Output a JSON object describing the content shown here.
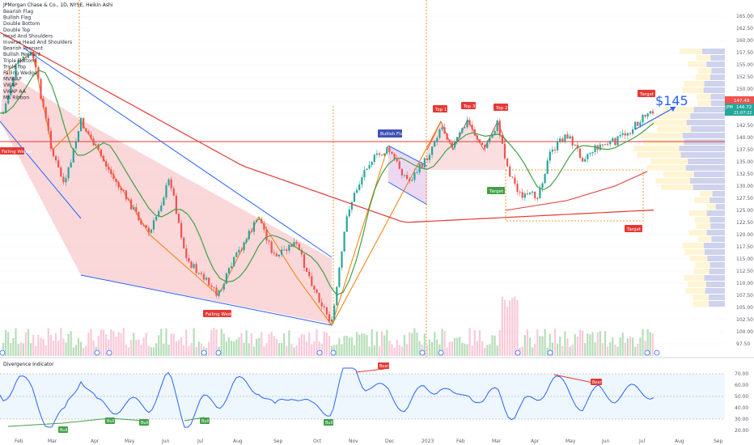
{
  "header": {
    "symbol_line": "JPMorgan Chase & Co., 1D, NYSE, Heikin Ashi"
  },
  "legend": {
    "items": [
      "Bearish Flag",
      "Bullish Flag",
      "Double Bottom",
      "Double Top",
      "Head And Shoulders",
      "Inverse Head And Shoulders",
      "Bearish Pennant",
      "Bullish Pennant",
      "Triple Bottom",
      "Triple Top",
      "Falling Wedge",
      "MVWAP",
      "VWAP",
      "VWAP AA",
      "MA Ribbon"
    ]
  },
  "price_axis": {
    "ticks": [
      "165.00",
      "162.50",
      "160.00",
      "157.50",
      "155.00",
      "152.50",
      "150.00",
      "147.50",
      "145.00",
      "142.50",
      "140.00",
      "137.50",
      "135.00",
      "132.50",
      "130.00",
      "127.50",
      "125.00",
      "122.50",
      "120.00",
      "117.50",
      "115.00",
      "112.50",
      "110.00",
      "107.50",
      "105.00",
      "102.50",
      "100.00",
      "97.50"
    ],
    "badges": {
      "price1": "147.49",
      "price2": "146.72",
      "symbol": "JPM",
      "countdown": "21:07:22"
    }
  },
  "time_axis": {
    "labels": [
      "Feb",
      "Mar",
      "Apr",
      "May",
      "Jun",
      "Jul",
      "Aug",
      "Sep",
      "Oct",
      "Nov",
      "Dec",
      "2023",
      "Feb",
      "Mar",
      "Apr",
      "May",
      "Jun",
      "Jul",
      "Aug",
      "Sep"
    ]
  },
  "annotations": {
    "big_price": "$145",
    "falling_wedge_left": "Falling Wedge",
    "falling_wedge_bottom": "Falling Wedge",
    "bullish_flag": "Bullish Flag",
    "top1": "Top 1",
    "top2": "Top 2",
    "top3": "Top 3",
    "target_mid": "Target",
    "target_low": "Target",
    "target_top": "Target"
  },
  "oscillator": {
    "title": "Divergence Indicator",
    "ticks": [
      "70.00",
      "60.00",
      "50.00",
      "40.00",
      "30.00",
      "20.00"
    ],
    "bear_labels": [
      "Bear",
      "Bear"
    ],
    "bull_labels": [
      "Bull",
      "Bull",
      "Bull",
      "Bull",
      "Bull"
    ]
  },
  "colors": {
    "up": "#26a69a",
    "down": "#ef5350",
    "wedge_line": "#2962ff",
    "red_ma": "#e53935",
    "green_ma": "#43a047",
    "orange_line": "#f57c00",
    "rsi_line": "#2962ff"
  }
}
